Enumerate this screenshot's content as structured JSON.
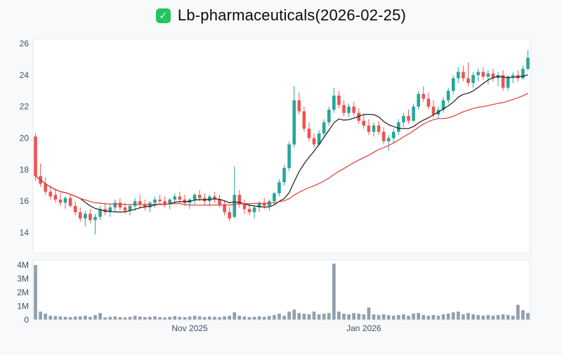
{
  "header": {
    "title": "Lb-pharmaceuticals(2026-02-25)",
    "check_glyph": "✓",
    "icon_color": "#22c55e"
  },
  "chart_data": {
    "type": "candlestick+volume",
    "title": "Lb-pharmaceuticals(2026-02-25)",
    "price_axis": {
      "ticks": [
        26,
        24,
        22,
        20,
        18,
        16,
        14
      ],
      "range": [
        13.7,
        26.3
      ]
    },
    "volume_axis": {
      "tick_labels": [
        "4M",
        "3M",
        "2M",
        "1M",
        "0"
      ],
      "tick_values": [
        4,
        3,
        2,
        1,
        0
      ],
      "unit": "M",
      "range": [
        0,
        4.3
      ]
    },
    "x_axis": {
      "tick_labels": [
        "Nov 2025",
        "Jan 2026"
      ],
      "tick_indices": [
        31,
        66
      ]
    },
    "legend": "none",
    "grid": "off",
    "colors": {
      "up": "#26a69a",
      "down": "#ef5350",
      "volume": "#8b9aa9",
      "axis_text": "#3e5166",
      "plot_border": "#e4e7eb",
      "plot_bg": "#ffffff"
    },
    "overlays": [
      {
        "name": "ma-short",
        "window": 10,
        "color": "#1a1a1a"
      },
      {
        "name": "ma-long",
        "window": 30,
        "color": "#e53935"
      }
    ],
    "ohlcv_format": [
      "open",
      "high",
      "low",
      "close",
      "volume_millions"
    ],
    "ohlcv": [
      [
        20.1,
        20.3,
        17.3,
        17.6,
        4.0
      ],
      [
        17.6,
        18.4,
        16.9,
        17.1,
        0.6
      ],
      [
        17.1,
        17.5,
        16.4,
        16.6,
        0.45
      ],
      [
        16.6,
        17.0,
        16.1,
        16.3,
        0.3
      ],
      [
        16.4,
        16.8,
        15.9,
        16.1,
        0.28
      ],
      [
        16.1,
        16.5,
        15.7,
        15.9,
        0.25
      ],
      [
        15.9,
        16.3,
        15.5,
        16.2,
        0.22
      ],
      [
        16.2,
        16.4,
        15.6,
        15.7,
        0.2
      ],
      [
        15.7,
        16.0,
        15.1,
        15.3,
        0.24
      ],
      [
        15.3,
        15.6,
        14.7,
        14.9,
        0.26
      ],
      [
        14.9,
        15.4,
        14.4,
        15.2,
        0.3
      ],
      [
        15.2,
        15.5,
        14.6,
        14.8,
        0.22
      ],
      [
        14.8,
        15.2,
        13.9,
        15.0,
        0.35
      ],
      [
        15.0,
        15.7,
        14.8,
        15.5,
        0.5
      ],
      [
        15.5,
        15.9,
        15.1,
        15.3,
        0.18
      ],
      [
        15.3,
        15.8,
        15.0,
        15.6,
        0.22
      ],
      [
        15.6,
        16.1,
        15.3,
        15.9,
        0.25
      ],
      [
        15.9,
        16.2,
        15.4,
        15.6,
        0.2
      ],
      [
        15.6,
        15.9,
        15.2,
        15.4,
        0.18
      ],
      [
        15.4,
        15.8,
        15.1,
        15.7,
        0.22
      ],
      [
        15.7,
        16.2,
        15.4,
        16.0,
        0.3
      ],
      [
        16.0,
        16.4,
        15.6,
        15.8,
        0.24
      ],
      [
        15.8,
        16.1,
        15.4,
        15.6,
        0.2
      ],
      [
        15.6,
        16.0,
        15.3,
        15.9,
        0.22
      ],
      [
        15.9,
        16.3,
        15.6,
        16.1,
        0.26
      ],
      [
        16.1,
        16.4,
        15.8,
        16.0,
        0.2
      ],
      [
        16.0,
        16.3,
        15.6,
        15.8,
        0.18
      ],
      [
        15.8,
        16.2,
        15.5,
        16.1,
        0.22
      ],
      [
        16.1,
        16.5,
        15.8,
        16.3,
        0.28
      ],
      [
        16.3,
        16.6,
        15.9,
        16.1,
        0.22
      ],
      [
        16.1,
        16.4,
        15.7,
        15.9,
        0.2
      ],
      [
        15.9,
        16.2,
        15.5,
        16.1,
        0.24
      ],
      [
        16.1,
        16.5,
        15.8,
        16.4,
        0.3
      ],
      [
        16.4,
        16.7,
        16.0,
        16.2,
        0.26
      ],
      [
        16.2,
        16.5,
        15.8,
        16.0,
        0.2
      ],
      [
        16.0,
        16.4,
        15.7,
        16.3,
        0.24
      ],
      [
        16.3,
        16.6,
        15.9,
        16.1,
        0.22
      ],
      [
        16.1,
        16.4,
        15.6,
        15.8,
        0.2
      ],
      [
        15.8,
        16.0,
        15.1,
        15.3,
        0.26
      ],
      [
        15.3,
        15.6,
        14.7,
        14.9,
        0.3
      ],
      [
        15.0,
        18.2,
        14.9,
        16.4,
        0.55
      ],
      [
        16.4,
        16.7,
        15.6,
        15.8,
        0.3
      ],
      [
        15.8,
        16.1,
        15.2,
        15.5,
        0.24
      ],
      [
        15.5,
        15.9,
        15.1,
        15.3,
        0.2
      ],
      [
        15.3,
        15.7,
        14.9,
        15.6,
        0.22
      ],
      [
        15.6,
        16.0,
        15.3,
        15.9,
        0.26
      ],
      [
        15.9,
        16.2,
        15.5,
        15.7,
        0.22
      ],
      [
        15.7,
        16.1,
        15.4,
        16.0,
        0.28
      ],
      [
        16.0,
        16.6,
        15.8,
        16.5,
        0.35
      ],
      [
        16.5,
        17.4,
        16.3,
        17.2,
        0.45
      ],
      [
        17.2,
        18.3,
        17.0,
        18.1,
        0.3
      ],
      [
        18.1,
        19.8,
        17.9,
        19.6,
        0.6
      ],
      [
        19.6,
        23.3,
        19.4,
        22.4,
        0.75
      ],
      [
        22.4,
        22.9,
        21.5,
        21.7,
        0.5
      ],
      [
        21.7,
        22.0,
        20.4,
        20.6,
        0.45
      ],
      [
        20.6,
        21.0,
        19.8,
        20.0,
        0.4
      ],
      [
        20.0,
        20.3,
        19.4,
        19.6,
        0.6
      ],
      [
        19.6,
        20.5,
        19.5,
        20.3,
        0.4
      ],
      [
        20.3,
        21.2,
        20.1,
        21.0,
        0.45
      ],
      [
        21.0,
        22.0,
        20.8,
        21.8,
        0.5
      ],
      [
        21.8,
        23.2,
        21.6,
        22.7,
        4.1
      ],
      [
        22.7,
        23.0,
        21.9,
        22.1,
        0.6
      ],
      [
        22.1,
        22.4,
        21.4,
        21.6,
        0.45
      ],
      [
        21.6,
        22.2,
        21.3,
        22.0,
        0.4
      ],
      [
        22.0,
        22.3,
        21.4,
        21.6,
        0.5
      ],
      [
        21.6,
        21.9,
        20.9,
        21.1,
        0.45
      ],
      [
        21.1,
        21.5,
        20.6,
        20.8,
        0.4
      ],
      [
        20.8,
        21.2,
        20.2,
        20.4,
        0.9
      ],
      [
        20.4,
        21.0,
        20.1,
        20.8,
        0.4
      ],
      [
        20.8,
        21.1,
        20.2,
        20.4,
        0.35
      ],
      [
        20.4,
        20.7,
        19.6,
        19.8,
        0.4
      ],
      [
        19.8,
        20.2,
        19.2,
        20.0,
        0.35
      ],
      [
        20.0,
        20.6,
        19.7,
        20.4,
        0.3
      ],
      [
        20.4,
        21.2,
        20.2,
        21.0,
        0.35
      ],
      [
        21.0,
        21.6,
        20.7,
        21.4,
        0.4
      ],
      [
        21.4,
        21.8,
        20.9,
        21.1,
        0.3
      ],
      [
        21.1,
        22.2,
        21.0,
        22.0,
        0.45
      ],
      [
        22.0,
        23.0,
        21.8,
        22.8,
        0.5
      ],
      [
        22.8,
        23.3,
        22.3,
        22.5,
        0.35
      ],
      [
        22.5,
        22.9,
        21.8,
        22.0,
        0.3
      ],
      [
        22.0,
        22.4,
        21.3,
        21.5,
        0.35
      ],
      [
        21.5,
        22.0,
        21.2,
        21.8,
        0.3
      ],
      [
        21.8,
        22.6,
        21.6,
        22.4,
        0.4
      ],
      [
        22.4,
        23.2,
        22.2,
        23.0,
        0.45
      ],
      [
        23.0,
        24.0,
        22.8,
        23.8,
        0.55
      ],
      [
        23.8,
        24.5,
        23.5,
        24.2,
        0.6
      ],
      [
        24.2,
        24.6,
        23.6,
        23.8,
        0.4
      ],
      [
        23.8,
        24.8,
        23.3,
        23.5,
        0.5
      ],
      [
        23.5,
        24.2,
        23.2,
        24.0,
        0.4
      ],
      [
        24.0,
        24.4,
        23.6,
        24.2,
        0.35
      ],
      [
        24.2,
        24.5,
        23.7,
        23.9,
        0.3
      ],
      [
        23.9,
        24.3,
        23.4,
        24.1,
        0.35
      ],
      [
        24.1,
        24.4,
        23.6,
        23.8,
        0.3
      ],
      [
        23.8,
        24.2,
        23.3,
        24.0,
        0.35
      ],
      [
        24.0,
        24.3,
        23.0,
        23.2,
        0.4
      ],
      [
        23.2,
        24.0,
        23.0,
        23.9,
        0.35
      ],
      [
        23.9,
        24.2,
        23.5,
        24.0,
        0.3
      ],
      [
        24.0,
        24.3,
        23.6,
        23.8,
        1.1
      ],
      [
        23.8,
        24.6,
        23.7,
        24.4,
        0.7
      ],
      [
        24.4,
        25.6,
        24.3,
        25.1,
        0.5
      ]
    ]
  }
}
